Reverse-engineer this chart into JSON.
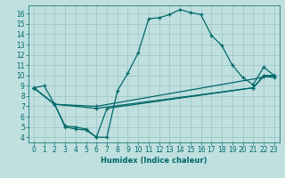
{
  "xlabel": "Humidex (Indice chaleur)",
  "bg_color": "#c0e0e0",
  "grid_color": "#a0c8c8",
  "line_color": "#006868",
  "xlim": [
    -0.5,
    23.5
  ],
  "ylim": [
    3.5,
    16.8
  ],
  "xticks": [
    0,
    1,
    2,
    3,
    4,
    5,
    6,
    7,
    8,
    9,
    10,
    11,
    12,
    13,
    14,
    15,
    16,
    17,
    18,
    19,
    20,
    21,
    22,
    23
  ],
  "yticks": [
    4,
    5,
    6,
    7,
    8,
    9,
    10,
    11,
    12,
    13,
    14,
    15,
    16
  ],
  "lines": [
    {
      "x": [
        0,
        1,
        2,
        3,
        4,
        5,
        6,
        7,
        8,
        9,
        10,
        11,
        12,
        13,
        14,
        15,
        16,
        17,
        18,
        19,
        20,
        21,
        22,
        23
      ],
      "y": [
        8.8,
        9.0,
        7.2,
        5.1,
        5.0,
        4.8,
        4.0,
        4.0,
        8.5,
        10.2,
        12.2,
        15.5,
        15.6,
        15.9,
        16.4,
        16.1,
        15.9,
        13.9,
        12.9,
        11.0,
        9.8,
        9.1,
        10.8,
        10.0
      ]
    },
    {
      "x": [
        0,
        2,
        6,
        23
      ],
      "y": [
        8.8,
        7.2,
        7.0,
        10.0
      ]
    },
    {
      "x": [
        0,
        2,
        6,
        21,
        22,
        23
      ],
      "y": [
        8.8,
        7.2,
        6.8,
        8.8,
        9.9,
        9.8
      ]
    },
    {
      "x": [
        0,
        2,
        3,
        4,
        5,
        6,
        7,
        21,
        22,
        23
      ],
      "y": [
        8.8,
        7.2,
        5.0,
        4.8,
        4.7,
        4.0,
        6.8,
        8.8,
        10.0,
        10.0
      ]
    }
  ]
}
